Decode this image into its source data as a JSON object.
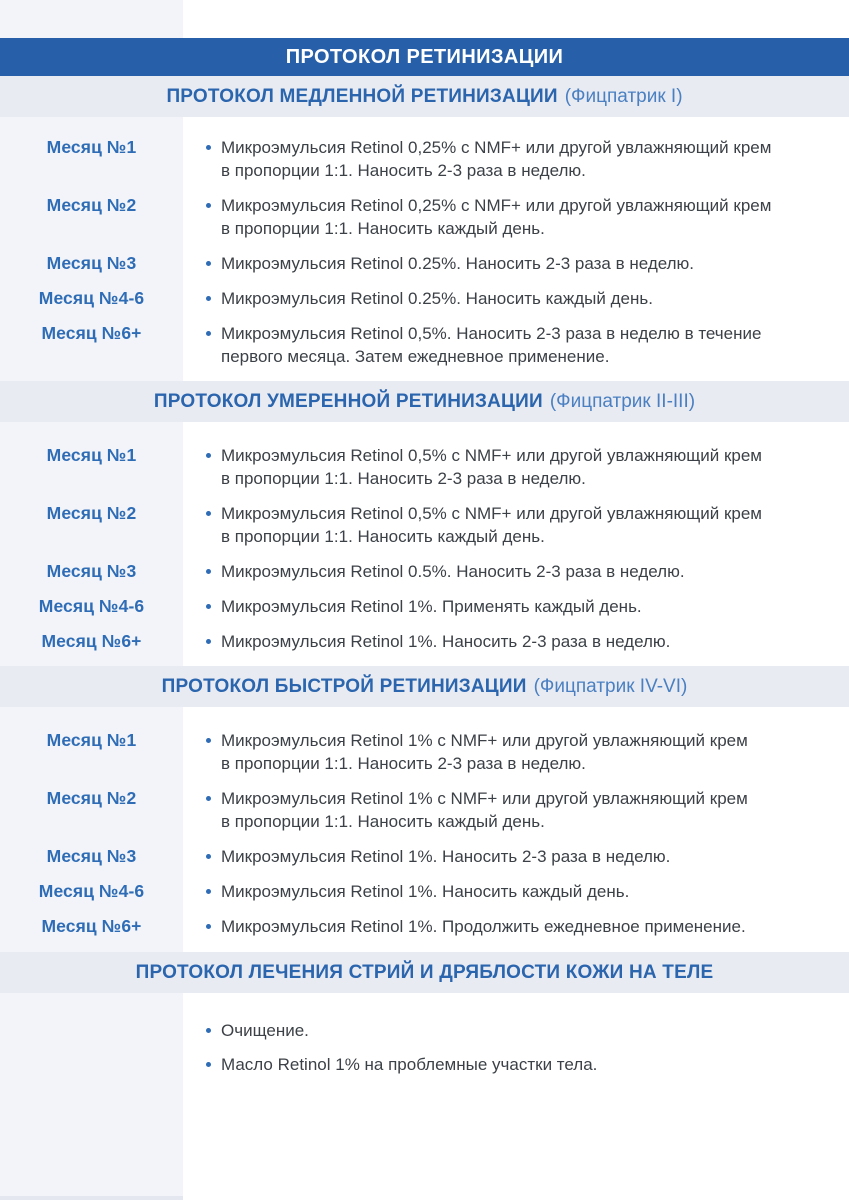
{
  "page_title": "ПРОТОКОЛ РЕТИНИЗАЦИИ",
  "colors": {
    "accent_bar": "#275fa8",
    "section_band": "#e9ebf2",
    "left_band": "#f2f4f9",
    "heading_blue": "#2a65ae",
    "subtitle_blue": "#4a80c2",
    "label_blue": "#2e6cb6",
    "body_text": "#3c4147"
  },
  "sections": [
    {
      "title": "ПРОТОКОЛ МЕДЛЕННОЙ РЕТИНИЗАЦИИ",
      "subtitle": "(Фицпатрик I)",
      "rows": [
        {
          "label": "Месяц №1",
          "text": "Микроэмульсия Retinol 0,25% с NMF+ или другой увлажняющий крем\nв пропорции 1:1. Наносить 2-3 раза в неделю."
        },
        {
          "label": "Месяц №2",
          "text": "Микроэмульсия Retinol 0,25% с NMF+ или другой увлажняющий крем\nв пропорции 1:1. Наносить каждый день."
        },
        {
          "label": "Месяц №3",
          "text": "Микроэмульсия Retinol 0.25%. Наносить 2-3 раза в неделю."
        },
        {
          "label": "Месяц №4-6",
          "text": "Микроэмульсия Retinol 0.25%. Наносить каждый день."
        },
        {
          "label": "Месяц №6+",
          "text": "Микроэмульсия Retinol 0,5%. Наносить 2-3 раза в неделю в течение\nпервого месяца. Затем ежедневное применение."
        }
      ]
    },
    {
      "title": "ПРОТОКОЛ УМЕРЕННОЙ РЕТИНИЗАЦИИ",
      "subtitle": "(Фицпатрик II-III)",
      "rows": [
        {
          "label": "Месяц №1",
          "text": "Микроэмульсия Retinol 0,5% с NMF+ или другой увлажняющий крем\nв пропорции 1:1. Наносить 2-3 раза в неделю."
        },
        {
          "label": "Месяц №2",
          "text": "Микроэмульсия Retinol 0,5% с NMF+ или другой увлажняющий крем\nв пропорции 1:1. Наносить каждый день."
        },
        {
          "label": "Месяц №3",
          "text": "Микроэмульсия Retinol 0.5%. Наносить 2-3 раза в неделю."
        },
        {
          "label": "Месяц №4-6",
          "text": "Микроэмульсия Retinol 1%. Применять каждый день."
        },
        {
          "label": "Месяц №6+",
          "text": "Микроэмульсия Retinol 1%. Наносить 2-3 раза в неделю."
        }
      ]
    },
    {
      "title": "ПРОТОКОЛ БЫСТРОЙ РЕТИНИЗАЦИИ",
      "subtitle": "(Фицпатрик IV-VI)",
      "rows": [
        {
          "label": "Месяц №1",
          "text": "Микроэмульсия Retinol 1% с NMF+ или другой увлажняющий крем\nв пропорции 1:1. Наносить 2-3 раза в неделю."
        },
        {
          "label": "Месяц №2",
          "text": "Микроэмульсия Retinol 1% с NMF+ или другой увлажняющий крем\nв пропорции 1:1. Наносить каждый день."
        },
        {
          "label": "Месяц №3",
          "text": "Микроэмульсия Retinol 1%. Наносить 2-3 раза в неделю."
        },
        {
          "label": "Месяц №4-6",
          "text": "Микроэмульсия Retinol 1%. Наносить каждый день."
        },
        {
          "label": "Месяц №6+",
          "text": "Микроэмульсия Retinol 1%. Продолжить ежедневное применение."
        }
      ]
    },
    {
      "title": "ПРОТОКОЛ ЛЕЧЕНИЯ СТРИЙ И ДРЯБЛОСТИ КОЖИ НА ТЕЛЕ",
      "subtitle": "",
      "bullets": [
        "Очищение.",
        "Масло Retinol 1% на проблемные участки тела."
      ]
    }
  ]
}
